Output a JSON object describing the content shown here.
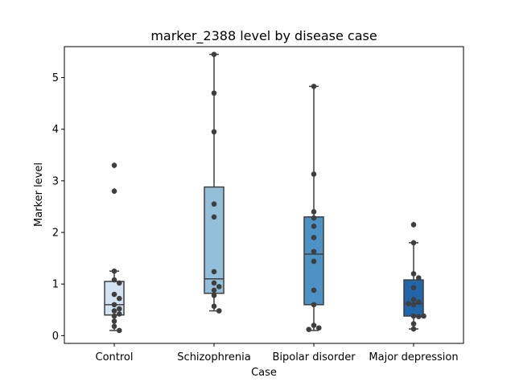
{
  "chart_data": {
    "type": "box",
    "title": "marker_2388 level by disease case",
    "xlabel": "Case",
    "ylabel": "Marker level",
    "ylim": [
      -0.15,
      5.6
    ],
    "yticks": [
      0,
      1,
      2,
      3,
      4,
      5
    ],
    "grid": false,
    "categories": [
      "Control",
      "Schizophrenia",
      "Bipolar disorder",
      "Major depression"
    ],
    "colors": [
      "#d3e3f2",
      "#94bfdb",
      "#4c92c4",
      "#2166ab"
    ],
    "boxes": [
      {
        "q1": 0.4,
        "median": 0.6,
        "q3": 1.05,
        "whisker_low": 0.1,
        "whisker_high": 1.25,
        "outliers": [
          3.3,
          2.8
        ]
      },
      {
        "q1": 0.82,
        "median": 1.1,
        "q3": 2.88,
        "whisker_low": 0.48,
        "whisker_high": 5.45,
        "outliers": []
      },
      {
        "q1": 0.6,
        "median": 1.58,
        "q3": 2.3,
        "whisker_low": 0.1,
        "whisker_high": 4.83,
        "outliers": []
      },
      {
        "q1": 0.38,
        "median": 0.62,
        "q3": 1.08,
        "whisker_low": 0.13,
        "whisker_high": 1.8,
        "outliers": [
          2.15
        ]
      }
    ],
    "points": [
      [
        3.3,
        2.8,
        1.25,
        1.08,
        1.02,
        0.8,
        0.72,
        0.6,
        0.52,
        0.48,
        0.42,
        0.38,
        0.28,
        0.18,
        0.1
      ],
      [
        5.45,
        4.7,
        3.95,
        2.55,
        2.3,
        1.24,
        1.02,
        0.95,
        0.88,
        0.78,
        0.57,
        0.48
      ],
      [
        4.83,
        3.13,
        2.4,
        2.28,
        2.12,
        1.9,
        1.63,
        1.44,
        0.88,
        0.6,
        0.2,
        0.15,
        0.12
      ],
      [
        2.15,
        1.8,
        1.2,
        1.12,
        0.93,
        0.7,
        0.65,
        0.62,
        0.6,
        0.38,
        0.38,
        0.37,
        0.23,
        0.13
      ]
    ]
  }
}
